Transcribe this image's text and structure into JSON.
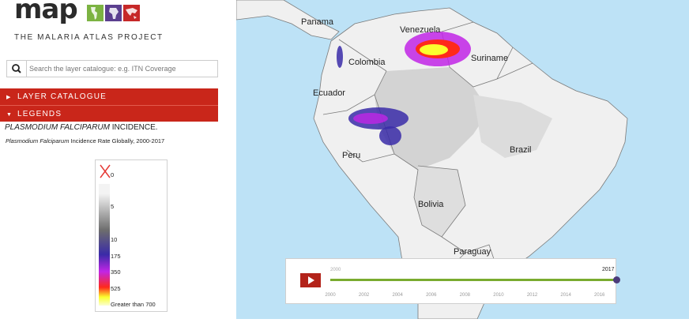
{
  "brand": {
    "logo_text": "map",
    "subtitle": "THE MALARIA ATLAS PROJECT",
    "logo_colors": [
      "#7cb342",
      "#5b3f8f",
      "#c62828"
    ]
  },
  "search": {
    "placeholder": "Search the layer catalogue: e.g. ITN Coverage",
    "icon": "search-icon"
  },
  "panels": {
    "layer_catalogue": "LAYER CATALOGUE",
    "legends": "LEGENDS"
  },
  "legend": {
    "title_italic": "PLASMODIUM FALCIPARUM",
    "title_rest": " INCIDENCE.",
    "subtitle_italic": "Plasmodium Falciparum",
    "subtitle_rest": " Incidence Rate Globally, 2000-2017",
    "no_data_icon": "red-x-icon",
    "ticks": [
      "0",
      "5",
      "10",
      "175",
      "350",
      "525",
      "Greater than 700"
    ],
    "colors": {
      "low": "#f3f3f3",
      "mid_grey": "#6d6d6d",
      "blue": "#3a2ba8",
      "purple": "#c125e6",
      "red": "#ff2a1a",
      "yellow": "#fbff2e",
      "pale": "#fbffd2"
    }
  },
  "map": {
    "ocean_color": "#bde2f6",
    "land_color": "#f0f0f0",
    "countries": {
      "panama": "Panama",
      "venezuela": "Venezuela",
      "colombia": "Colombia",
      "suriname": "Suriname",
      "ecuador": "Ecuador",
      "peru": "Peru",
      "brazil": "Brazil",
      "bolivia": "Bolivia",
      "paraguay": "Paraguay"
    }
  },
  "timeline": {
    "start_year": "2000",
    "current_year": "2017",
    "current_fraction": 1.0,
    "years": [
      "2000",
      "2002",
      "2004",
      "2006",
      "2008",
      "2010",
      "2012",
      "2014",
      "2016"
    ],
    "play_icon": "play-icon",
    "track_color": "#7aab2f"
  }
}
